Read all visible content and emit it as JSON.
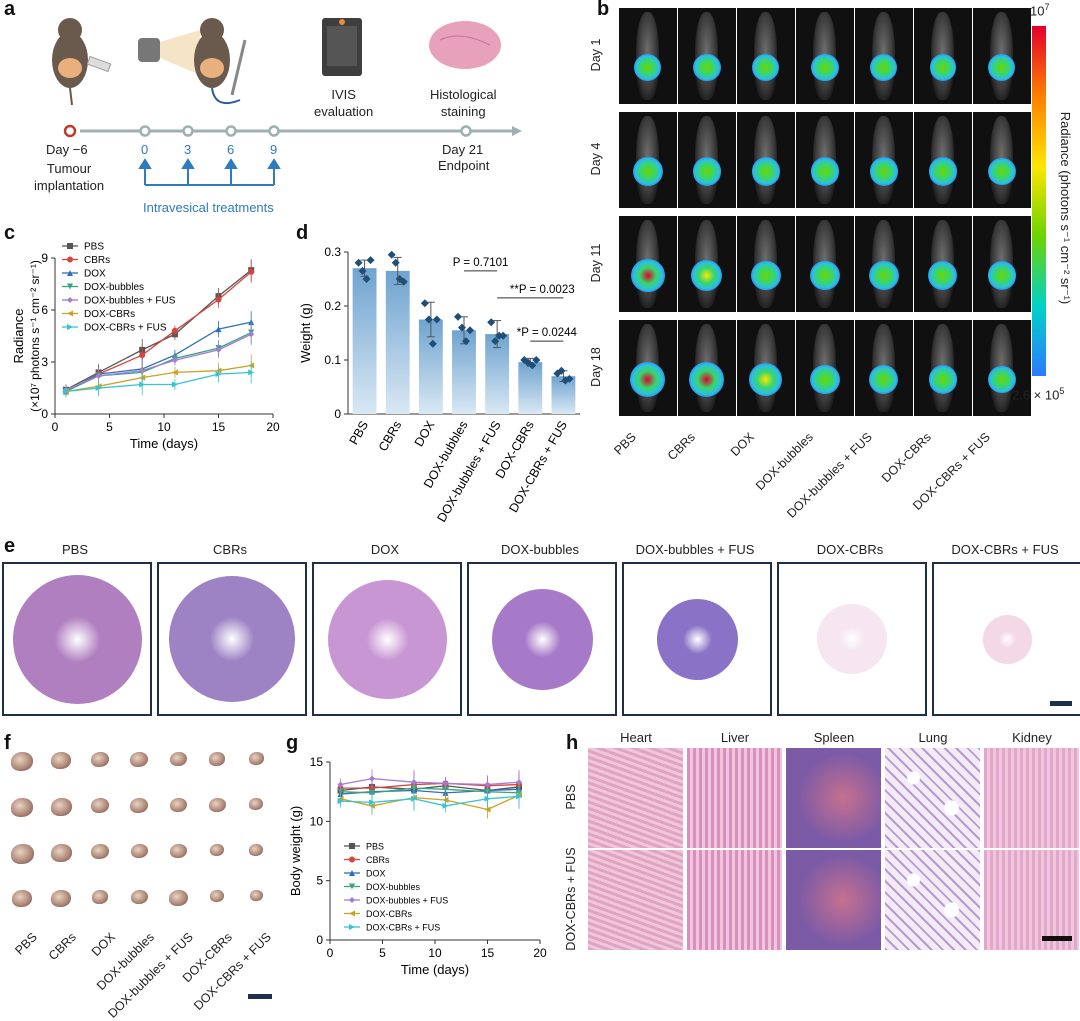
{
  "panel_labels": {
    "a": "a",
    "b": "b",
    "c": "c",
    "d": "d",
    "e": "e",
    "f": "f",
    "g": "g",
    "h": "h"
  },
  "timeline": {
    "events": [
      {
        "label": "Day −6",
        "sublabel": "Tumour\nimplantation"
      },
      {
        "label": "0"
      },
      {
        "label": "3"
      },
      {
        "label": "6"
      },
      {
        "label": "9"
      },
      {
        "label": "Day 21",
        "sublabel": "Endpoint"
      }
    ],
    "treatments_label": "Intravesical treatments",
    "ivis_label": "IVIS\nevaluation",
    "histology_label": "Histological\nstaining"
  },
  "ivis": {
    "days": [
      "Day 1",
      "Day 4",
      "Day 11",
      "Day 18"
    ],
    "groups": [
      "PBS",
      "CBRs",
      "DOX",
      "DOX-bubbles",
      "DOX-bubbles + FUS",
      "DOX-CBRs",
      "DOX-CBRs + FUS"
    ],
    "colorbar": {
      "max": "10",
      "max_exp": "7",
      "min": "2.6 × 10",
      "min_exp": "5",
      "label": "Radiance (photons s⁻¹ cm⁻² sr⁻¹)"
    },
    "intensity": [
      [
        0.35,
        0.4,
        0.35,
        0.4,
        0.35,
        0.3,
        0.35
      ],
      [
        0.55,
        0.45,
        0.45,
        0.45,
        0.45,
        0.45,
        0.4
      ],
      [
        0.85,
        0.65,
        0.55,
        0.55,
        0.55,
        0.5,
        0.45
      ],
      [
        0.95,
        0.95,
        0.8,
        0.55,
        0.5,
        0.45,
        0.4
      ]
    ]
  },
  "chart_data": [
    {
      "panel": "c",
      "type": "line",
      "xlabel": "Time (days)",
      "ylabel": "Radiance",
      "ylabel2": "(×10⁷ photons s⁻¹ cm⁻² sr⁻¹)",
      "xlim": [
        0,
        20
      ],
      "ylim": [
        0,
        9
      ],
      "xticks": [
        0,
        5,
        10,
        15,
        20
      ],
      "yticks": [
        0,
        3,
        6,
        9
      ],
      "x": [
        1,
        4,
        8,
        11,
        15,
        18
      ],
      "series": [
        {
          "name": "PBS",
          "color": "#555555",
          "marker": "square",
          "values": [
            1.4,
            2.4,
            3.7,
            4.6,
            6.8,
            8.3
          ]
        },
        {
          "name": "CBRs",
          "color": "#d64541",
          "marker": "circle",
          "values": [
            1.3,
            2.3,
            3.4,
            4.8,
            6.6,
            8.2
          ]
        },
        {
          "name": "DOX",
          "color": "#2e6fb7",
          "marker": "triangle-up",
          "values": [
            1.3,
            2.3,
            2.6,
            3.4,
            4.9,
            5.3
          ]
        },
        {
          "name": "DOX-bubbles",
          "color": "#3aa57a",
          "marker": "triangle-down",
          "values": [
            1.3,
            2.2,
            2.4,
            3.2,
            3.8,
            4.7
          ]
        },
        {
          "name": "DOX-bubbles + FUS",
          "color": "#a37ad9",
          "marker": "diamond",
          "values": [
            1.4,
            2.2,
            2.5,
            3.1,
            3.7,
            4.6
          ]
        },
        {
          "name": "DOX-CBRs",
          "color": "#c9a227",
          "marker": "triangle-left",
          "values": [
            1.3,
            1.6,
            2.1,
            2.4,
            2.5,
            2.8
          ]
        },
        {
          "name": "DOX-CBRs + FUS",
          "color": "#35c3d6",
          "marker": "triangle-right",
          "values": [
            1.3,
            1.5,
            1.7,
            1.7,
            2.3,
            2.4
          ]
        }
      ]
    },
    {
      "panel": "d",
      "type": "bar",
      "ylabel": "Weight (g)",
      "ylim": [
        0,
        0.3
      ],
      "yticks": [
        "0",
        "0.1",
        "0.2",
        "0.3"
      ],
      "categories": [
        "PBS",
        "CBRs",
        "DOX",
        "DOX-bubbles",
        "DOX-bubbles + FUS",
        "DOX-CBRs",
        "DOX-CBRs + FUS"
      ],
      "values": [
        0.27,
        0.265,
        0.175,
        0.155,
        0.148,
        0.096,
        0.07
      ],
      "errors": [
        0.015,
        0.025,
        0.032,
        0.025,
        0.025,
        0.007,
        0.01
      ],
      "points": [
        [
          0.28,
          0.265,
          0.25,
          0.285
        ],
        [
          0.295,
          0.28,
          0.25,
          0.245
        ],
        [
          0.205,
          0.175,
          0.13,
          0.175
        ],
        [
          0.18,
          0.16,
          0.135,
          0.155
        ],
        [
          0.17,
          0.135,
          0.145,
          0.145
        ],
        [
          0.1,
          0.095,
          0.09,
          0.1
        ],
        [
          0.075,
          0.08,
          0.062,
          0.065
        ]
      ],
      "annotations": [
        {
          "text": "P = 0.7101",
          "from": 3,
          "to": 4,
          "y": 0.265
        },
        {
          "text": "**P = 0.0023",
          "from": 4,
          "to": 6,
          "y": 0.215
        },
        {
          "text": "*P = 0.0244",
          "from": 5,
          "to": 6,
          "y": 0.135
        }
      ]
    },
    {
      "panel": "g",
      "type": "line",
      "xlabel": "Time (days)",
      "ylabel": "Body weight (g)",
      "xlim": [
        0,
        20
      ],
      "ylim": [
        0,
        15
      ],
      "xticks": [
        0,
        5,
        10,
        15,
        20
      ],
      "yticks": [
        0,
        5,
        10,
        15
      ],
      "x": [
        1,
        4,
        8,
        11,
        15,
        18
      ],
      "series": [
        {
          "name": "PBS",
          "color": "#555555",
          "marker": "square",
          "values": [
            12.6,
            12.9,
            12.7,
            13.0,
            12.6,
            12.9
          ]
        },
        {
          "name": "CBRs",
          "color": "#d64541",
          "marker": "circle",
          "values": [
            12.8,
            12.8,
            13.1,
            13.2,
            13.0,
            13.1
          ]
        },
        {
          "name": "DOX",
          "color": "#2e6fb7",
          "marker": "triangle-up",
          "values": [
            12.3,
            12.5,
            12.6,
            12.4,
            12.6,
            12.7
          ]
        },
        {
          "name": "DOX-bubbles",
          "color": "#3aa57a",
          "marker": "triangle-down",
          "values": [
            12.5,
            12.4,
            12.8,
            12.7,
            12.5,
            12.4
          ]
        },
        {
          "name": "DOX-bubbles + FUS",
          "color": "#a37ad9",
          "marker": "diamond",
          "values": [
            13.1,
            13.6,
            13.3,
            13.2,
            13.1,
            13.3
          ]
        },
        {
          "name": "DOX-CBRs",
          "color": "#c9a227",
          "marker": "triangle-left",
          "values": [
            11.9,
            11.3,
            12.0,
            11.8,
            11.0,
            12.2
          ]
        },
        {
          "name": "DOX-CBRs + FUS",
          "color": "#35c3d6",
          "marker": "triangle-right",
          "values": [
            11.7,
            11.6,
            11.9,
            11.3,
            11.9,
            12.1
          ]
        }
      ]
    }
  ],
  "he_panels": [
    {
      "label": "PBS",
      "size": 0.92,
      "color": "#b07fc0",
      "ring": "#d696c9"
    },
    {
      "label": "CBRs",
      "size": 0.9,
      "color": "#9d82c4",
      "ring": "#cc9bd0"
    },
    {
      "label": "DOX",
      "size": 0.85,
      "color": "#c996d4",
      "ring": "#e0b3dc"
    },
    {
      "label": "DOX-bubbles",
      "size": 0.72,
      "color": "#a77ac9",
      "ring": "#e7a9cf"
    },
    {
      "label": "DOX-bubbles + FUS",
      "size": 0.58,
      "color": "#8a73c6",
      "ring": "#d68fc4"
    },
    {
      "label": "DOX-CBRs",
      "size": 0.5,
      "color": "#f5e6ef",
      "ring": "#e08fbf"
    },
    {
      "label": "DOX-CBRs + FUS",
      "size": 0.35,
      "color": "#f3d8e6",
      "ring": "#e27fb5"
    }
  ],
  "bladders": {
    "groups": [
      "PBS",
      "CBRs",
      "DOX",
      "DOX-bubbles",
      "DOX-bubbles + FUS",
      "DOX-CBRs",
      "DOX-CBRs + FUS"
    ],
    "sizes": [
      [
        22,
        20,
        18,
        18,
        17,
        16,
        15
      ],
      [
        22,
        21,
        18,
        18,
        17,
        17,
        14
      ],
      [
        23,
        21,
        18,
        17,
        17,
        14,
        14
      ],
      [
        20,
        20,
        16,
        17,
        19,
        14,
        13
      ]
    ]
  },
  "histology": {
    "organs": [
      "Heart",
      "Liver",
      "Spleen",
      "Lung",
      "Kidney"
    ],
    "rows": [
      "PBS",
      "DOX-CBRs + FUS"
    ],
    "colors": [
      "#e0a3c2",
      "#d98fbf",
      "#7b5aa6",
      "#f0e6f3",
      "#e2a8cc"
    ]
  }
}
